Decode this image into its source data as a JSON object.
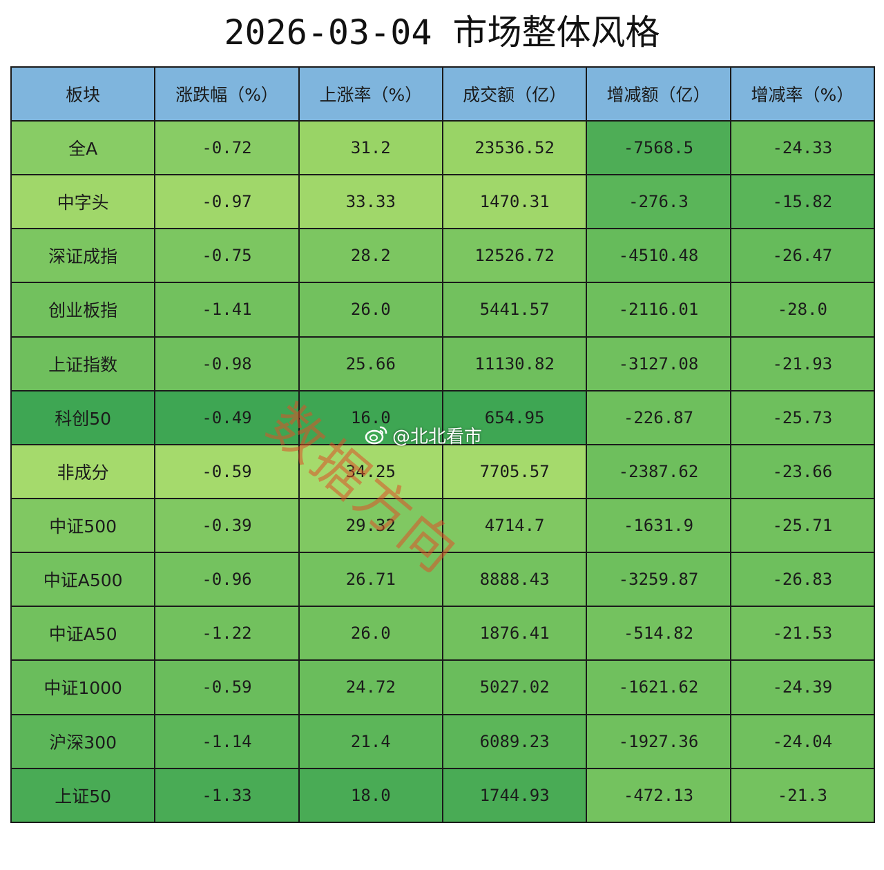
{
  "title": "2026-03-04 市场整体风格",
  "table": {
    "headers": [
      "板块",
      "涨跌幅（%）",
      "上涨率（%）",
      "成交额（亿）",
      "增减额（亿）",
      "增减率（%）"
    ],
    "header_color": "#7fb5dd",
    "rows": [
      {
        "cells": [
          "全A",
          "-0.72",
          "31.2",
          "23536.52",
          "-7568.5",
          "-24.33"
        ],
        "colors": [
          "#88cc65",
          "#88cc65",
          "#99d466",
          "#99d466",
          "#4ead56",
          "#6abd5c"
        ]
      },
      {
        "cells": [
          "中字头",
          "-0.97",
          "33.33",
          "1470.31",
          "-276.3",
          "-15.82"
        ],
        "colors": [
          "#a0d76a",
          "#a0d76a",
          "#a0d76a",
          "#a0d76a",
          "#5ab559",
          "#5ab559"
        ]
      },
      {
        "cells": [
          "深证成指",
          "-0.75",
          "28.2",
          "12526.72",
          "-4510.48",
          "-26.47"
        ],
        "colors": [
          "#7cc661",
          "#7cc661",
          "#7cc661",
          "#7cc661",
          "#66bb5b",
          "#66bb5b"
        ]
      },
      {
        "cells": [
          "创业板指",
          "-1.41",
          "26.0",
          "5441.57",
          "-2116.01",
          "-28.0"
        ],
        "colors": [
          "#72c15e",
          "#72c15e",
          "#72c15e",
          "#72c15e",
          "#6ebf5d",
          "#6ebf5d"
        ]
      },
      {
        "cells": [
          "上证指数",
          "-0.98",
          "25.66",
          "11130.82",
          "-3127.08",
          "-21.93"
        ],
        "colors": [
          "#6fbf5d",
          "#6fbf5d",
          "#6fbf5d",
          "#6fbf5d",
          "#70c05e",
          "#70c05e"
        ]
      },
      {
        "cells": [
          "科创50",
          "-0.49",
          "16.0",
          "654.95",
          "-226.87",
          "-25.73"
        ],
        "colors": [
          "#3ea653",
          "#3ea653",
          "#3ea653",
          "#3ea653",
          "#6ebf5d",
          "#6ebf5d"
        ]
      },
      {
        "cells": [
          "非成分",
          "-0.59",
          "34.25",
          "7705.57",
          "-2387.62",
          "-23.66"
        ],
        "colors": [
          "#a5da6c",
          "#a5da6c",
          "#a5da6c",
          "#a5da6c",
          "#6ebf5d",
          "#6ebf5d"
        ]
      },
      {
        "cells": [
          "中证500",
          "-0.39",
          "29.32",
          "4714.7",
          "-1631.9",
          "-25.71"
        ],
        "colors": [
          "#80c862",
          "#80c862",
          "#80c862",
          "#80c862",
          "#72c15e",
          "#72c15e"
        ]
      },
      {
        "cells": [
          "中证A500",
          "-0.96",
          "26.71",
          "8888.43",
          "-3259.87",
          "-26.83"
        ],
        "colors": [
          "#74c25f",
          "#74c25f",
          "#74c25f",
          "#74c25f",
          "#6ebf5d",
          "#6ebf5d"
        ]
      },
      {
        "cells": [
          "中证A50",
          "-1.22",
          "26.0",
          "1876.41",
          "-514.82",
          "-21.53"
        ],
        "colors": [
          "#72c15e",
          "#72c15e",
          "#72c15e",
          "#72c15e",
          "#74c25f",
          "#74c25f"
        ]
      },
      {
        "cells": [
          "中证1000",
          "-0.59",
          "24.72",
          "5027.02",
          "-1621.62",
          "-24.39"
        ],
        "colors": [
          "#6abd5c",
          "#6abd5c",
          "#6abd5c",
          "#6abd5c",
          "#70c05e",
          "#70c05e"
        ]
      },
      {
        "cells": [
          "沪深300",
          "-1.14",
          "21.4",
          "6089.23",
          "-1927.36",
          "-24.04"
        ],
        "colors": [
          "#5cb659",
          "#5cb659",
          "#5cb659",
          "#5cb659",
          "#70c05e",
          "#70c05e"
        ]
      },
      {
        "cells": [
          "上证50",
          "-1.33",
          "18.0",
          "1744.93",
          "-472.13",
          "-21.3"
        ],
        "colors": [
          "#49ab55",
          "#49ab55",
          "#49ab55",
          "#49ab55",
          "#74c25f",
          "#74c25f"
        ]
      }
    ]
  },
  "watermark": "数据方向",
  "weibo": {
    "icon": "weibo-icon",
    "handle": "@北北看市"
  }
}
